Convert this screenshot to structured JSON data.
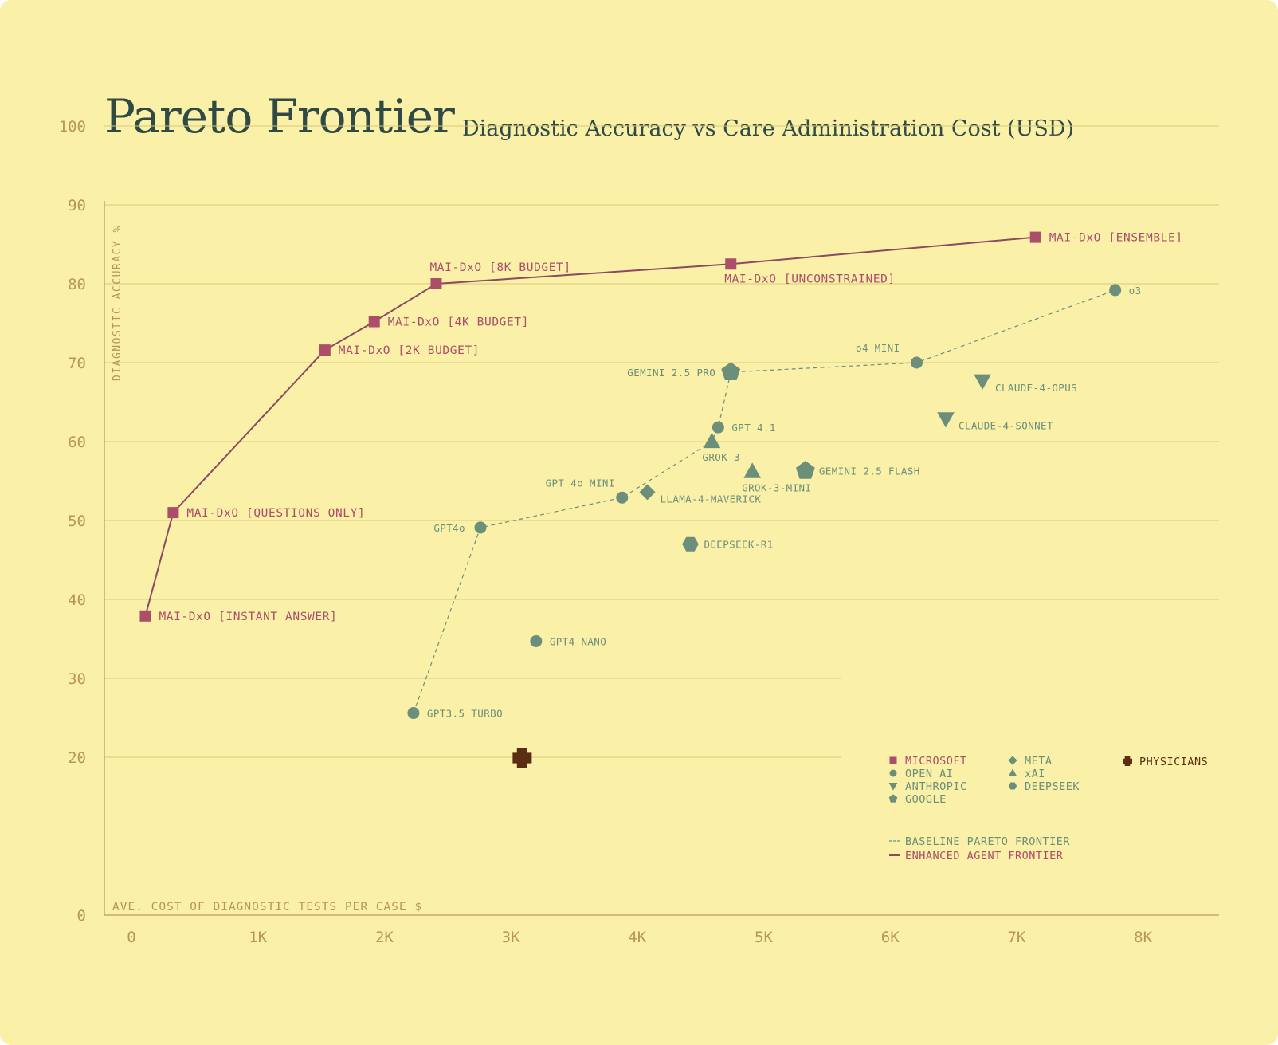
{
  "header": {
    "title": "Pareto Frontier",
    "subtitle": "Diagnostic Accuracy vs Care Administration Cost (USD)"
  },
  "colors": {
    "background": "#faf0a8",
    "microsoft": "#ac4e69",
    "frontier_line": "#8a4a5f",
    "others": "#6b8f7a",
    "physicians": "#5a2e12",
    "axis_text": "#b8965a",
    "title_text": "#2f4a44",
    "grid": "#d8c77e"
  },
  "chart_data": {
    "type": "scatter",
    "title": "Pareto Frontier",
    "subtitle": "Diagnostic Accuracy vs Care Administration Cost (USD)",
    "xlabel": "AVE. COST OF DIAGNOSTIC TESTS PER CASE $",
    "ylabel": "DIAGNOSTIC ACCURACY %",
    "xlim": [
      0,
      8800
    ],
    "ylim": [
      0,
      100
    ],
    "x_ticks": [
      0,
      1000,
      2000,
      3000,
      4000,
      5000,
      6000,
      7000,
      8000
    ],
    "x_tick_labels": [
      "0",
      "1K",
      "2K",
      "3K",
      "4K",
      "5K",
      "6K",
      "7K",
      "8K"
    ],
    "y_ticks": [
      0,
      20,
      30,
      40,
      50,
      60,
      70,
      80,
      90,
      100
    ],
    "y_tick_labels": [
      "0",
      "20",
      "30",
      "40",
      "50",
      "60",
      "70",
      "80",
      "90",
      "100"
    ],
    "grid": true,
    "legend_position": "bottom-right",
    "points": [
      {
        "label": "MAI-DxO [INSTANT ANSWER]",
        "x": 110,
        "y": 37.9,
        "group": "microsoft",
        "marker": "square",
        "label_side": "right"
      },
      {
        "label": "MAI-DxO [QUESTIONS ONLY]",
        "x": 330,
        "y": 51.0,
        "group": "microsoft",
        "marker": "square",
        "label_side": "right"
      },
      {
        "label": "MAI-DxO [2K BUDGET]",
        "x": 1530,
        "y": 71.6,
        "group": "microsoft",
        "marker": "square",
        "label_side": "right"
      },
      {
        "label": "MAI-DxO [4K BUDGET]",
        "x": 1920,
        "y": 75.2,
        "group": "microsoft",
        "marker": "square",
        "label_side": "right"
      },
      {
        "label": "MAI-DxO [8K BUDGET]",
        "x": 2410,
        "y": 80.0,
        "group": "microsoft",
        "marker": "square",
        "label_side": "above"
      },
      {
        "label": "MAI-DxO [UNCONSTRAINED]",
        "x": 4740,
        "y": 82.5,
        "group": "microsoft",
        "marker": "square",
        "label_side": "below"
      },
      {
        "label": "MAI-DxO [ENSEMBLE]",
        "x": 7150,
        "y": 85.9,
        "group": "microsoft",
        "marker": "square",
        "label_side": "right"
      },
      {
        "label": "GPT3.5 TURBO",
        "x": 2230,
        "y": 25.6,
        "group": "openai",
        "marker": "circle",
        "label_side": "right"
      },
      {
        "label": "GPT4o",
        "x": 2760,
        "y": 49.1,
        "group": "openai",
        "marker": "circle",
        "label_side": "left"
      },
      {
        "label": "GPT4 NANO",
        "x": 3200,
        "y": 34.7,
        "group": "openai",
        "marker": "circle",
        "label_side": "right"
      },
      {
        "label": "GPT 4o MINI",
        "x": 3880,
        "y": 52.9,
        "group": "openai",
        "marker": "circle",
        "label_side": "above-left"
      },
      {
        "label": "GPT 4.1",
        "x": 4640,
        "y": 61.8,
        "group": "openai",
        "marker": "circle",
        "label_side": "right"
      },
      {
        "label": "o4 MINI",
        "x": 6210,
        "y": 70.0,
        "group": "openai",
        "marker": "circle",
        "label_side": "above-left"
      },
      {
        "label": "o3",
        "x": 7780,
        "y": 79.2,
        "group": "openai",
        "marker": "circle",
        "label_side": "right"
      },
      {
        "label": "LLAMA-4-MAVERICK",
        "x": 4080,
        "y": 53.6,
        "group": "meta",
        "marker": "diamond",
        "label_side": "below-right"
      },
      {
        "label": "GROK-3",
        "x": 4590,
        "y": 60.0,
        "group": "xai",
        "marker": "triangle",
        "label_side": "below"
      },
      {
        "label": "GROK-3-MINI",
        "x": 4910,
        "y": 56.2,
        "group": "xai",
        "marker": "triangle",
        "label_side": "below"
      },
      {
        "label": "GEMINI 2.5 PRO",
        "x": 4740,
        "y": 68.8,
        "group": "google",
        "marker": "pentagon",
        "label_side": "left"
      },
      {
        "label": "GEMINI 2.5 FLASH",
        "x": 5330,
        "y": 56.3,
        "group": "google",
        "marker": "pentagon",
        "label_side": "right"
      },
      {
        "label": "DEEPSEEK-R1",
        "x": 4420,
        "y": 47.0,
        "group": "deepseek",
        "marker": "hexagon",
        "label_side": "right"
      },
      {
        "label": "CLAUDE-4-OPUS",
        "x": 6730,
        "y": 67.7,
        "group": "anthropic",
        "marker": "triangle-down",
        "label_side": "below-right"
      },
      {
        "label": "CLAUDE-4-SONNET",
        "x": 6440,
        "y": 62.9,
        "group": "anthropic",
        "marker": "triangle-down",
        "label_side": "below-right"
      },
      {
        "label": "",
        "x": 3090,
        "y": 19.9,
        "group": "physicians",
        "marker": "plus",
        "label_side": "none"
      }
    ],
    "series": [
      {
        "name": "ENHANCED AGENT FRONTIER",
        "style": "solid",
        "x": [
          110,
          330,
          1530,
          1920,
          2410,
          4740,
          7150
        ],
        "y": [
          37.9,
          51.0,
          71.6,
          75.2,
          80.0,
          82.5,
          85.9
        ]
      },
      {
        "name": "BASELINE PARETO FRONTIER",
        "style": "dashed",
        "x": [
          2230,
          2760,
          3880,
          4590,
          4640,
          4740,
          6210,
          7780
        ],
        "y": [
          25.6,
          49.1,
          52.9,
          60.0,
          61.8,
          68.8,
          70.0,
          79.2
        ]
      }
    ],
    "legend": {
      "groups": [
        {
          "name": "MICROSOFT",
          "marker": "square",
          "group": "microsoft"
        },
        {
          "name": "OPEN AI",
          "marker": "circle",
          "group": "openai"
        },
        {
          "name": "ANTHROPIC",
          "marker": "triangle-down",
          "group": "anthropic"
        },
        {
          "name": "GOOGLE",
          "marker": "pentagon",
          "group": "google"
        },
        {
          "name": "META",
          "marker": "diamond",
          "group": "meta"
        },
        {
          "name": "xAI",
          "marker": "triangle",
          "group": "xai"
        },
        {
          "name": "DEEPSEEK",
          "marker": "hexagon",
          "group": "deepseek"
        },
        {
          "name": "PHYSICIANS",
          "marker": "plus",
          "group": "physicians"
        }
      ],
      "lines": [
        {
          "name": "BASELINE PARETO FRONTIER",
          "style": "dashed"
        },
        {
          "name": "ENHANCED AGENT FRONTIER",
          "style": "solid"
        }
      ]
    }
  }
}
